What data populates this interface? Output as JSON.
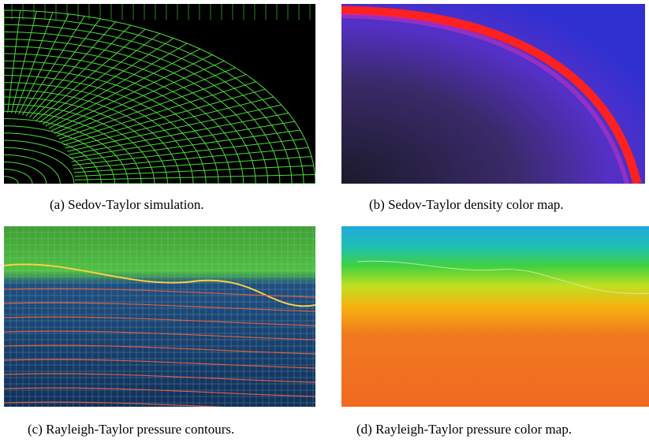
{
  "figure": {
    "panels": [
      {
        "caption": "(a) Sedov-Taylor simulation."
      },
      {
        "caption": "(b) Sedov-Taylor density color map."
      },
      {
        "caption": "(c) Rayleigh-Taylor pressure contours."
      },
      {
        "caption": "(d) Rayleigh-Taylor pressure color map."
      }
    ]
  }
}
